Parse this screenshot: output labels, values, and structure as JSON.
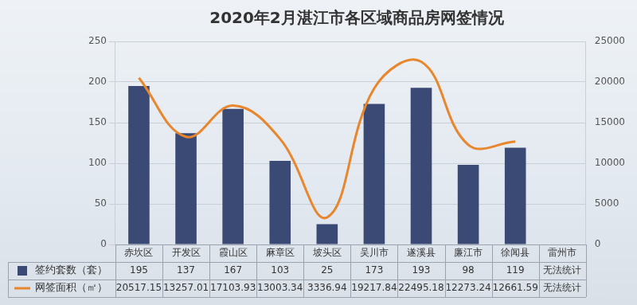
{
  "chart_data": {
    "type": "bar",
    "title": "2020年2月湛江市各区域商品房网签情况",
    "categories": [
      "赤坎区",
      "开发区",
      "霞山区",
      "麻章区",
      "坡头区",
      "吴川市",
      "遂溪县",
      "廉江市",
      "徐闻县",
      "雷州市"
    ],
    "series": [
      {
        "name": "签约套数（套）",
        "type": "bar",
        "color": "#3b4a74",
        "values": [
          195,
          137,
          167,
          103,
          25,
          173,
          193,
          98,
          119,
          null
        ],
        "value_labels": [
          "195",
          "137",
          "167",
          "103",
          "25",
          "173",
          "193",
          "98",
          "119",
          "无法统计"
        ]
      },
      {
        "name": "网签面积（㎡）",
        "type": "line",
        "axis": "y2",
        "color": "#e8862e",
        "line_style": "solid",
        "marker": "none",
        "values": [
          20517.15,
          13257.01,
          17103.93,
          13003.34,
          3336.94,
          19217.84,
          22495.18,
          12273.24,
          12661.59,
          null
        ],
        "value_labels": [
          "20517.15",
          "13257.01",
          "17103.93",
          "13003.34",
          "3336.94",
          "19217.84",
          "22495.18",
          "12273.24",
          "12661.59",
          "无法统计"
        ]
      }
    ],
    "ylim": [
      0,
      250
    ],
    "yticks": [
      0,
      50,
      100,
      150,
      200,
      250
    ],
    "y2lim": [
      0,
      25000
    ],
    "y2ticks": [
      0,
      5000,
      10000,
      15000,
      20000,
      25000
    ],
    "grid": true,
    "data_labels": true,
    "legend": "bottom"
  }
}
